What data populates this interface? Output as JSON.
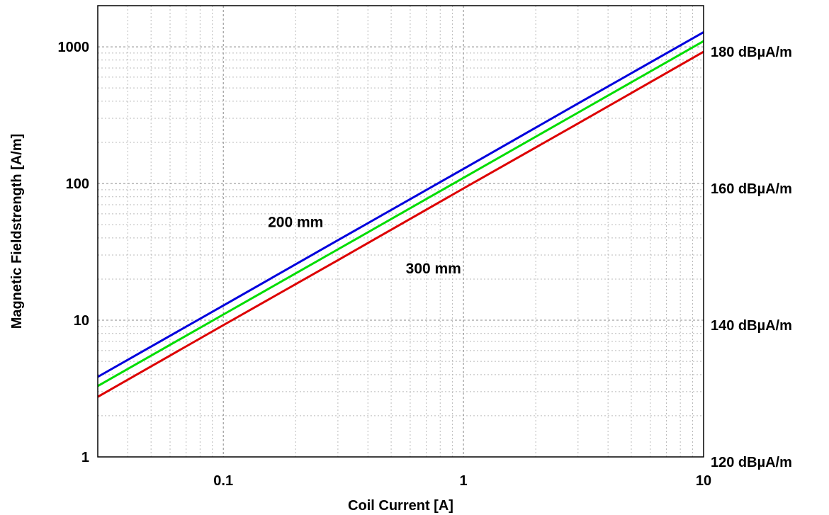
{
  "chart_data": {
    "type": "line",
    "title": "",
    "xlabel": "Coil Current [A]",
    "ylabel": "Magnetic Fieldstrength [A/m]",
    "xscale": "log",
    "yscale": "log",
    "xlim": [
      0.03,
      10
    ],
    "ylim": [
      1,
      2000
    ],
    "grid": true,
    "x_ticks": [
      {
        "value": 0.1,
        "label": "0.1"
      },
      {
        "value": 1,
        "label": "1"
      },
      {
        "value": 10,
        "label": "10"
      }
    ],
    "y_ticks": [
      {
        "value": 1,
        "label": "1"
      },
      {
        "value": 10,
        "label": "10"
      },
      {
        "value": 100,
        "label": "100"
      },
      {
        "value": 1000,
        "label": "1000"
      }
    ],
    "y2_ticks": [
      {
        "value": 1,
        "label": "120 dBµA/m"
      },
      {
        "value": 10,
        "label": "140 dBµA/m"
      },
      {
        "value": 100,
        "label": "160 dBµA/m"
      },
      {
        "value": 1000,
        "label": "180 dBµA/m"
      }
    ],
    "series": [
      {
        "color": "#0000dd",
        "x": [
          0.03,
          0.1,
          0.3,
          1,
          3,
          10
        ],
        "y": [
          3.85,
          12.8,
          38.5,
          128,
          385,
          1280
        ]
      },
      {
        "color": "#00dd00",
        "x": [
          0.03,
          0.1,
          0.3,
          1,
          3,
          10
        ],
        "y": [
          3.3,
          11,
          33,
          110,
          330,
          1100
        ]
      },
      {
        "color": "#dd0000",
        "x": [
          0.03,
          0.1,
          0.3,
          1,
          3,
          10
        ],
        "y": [
          2.75,
          9.2,
          27.5,
          92,
          275,
          920
        ]
      }
    ],
    "annotations": [
      {
        "text": "200 mm",
        "x": 0.2,
        "y": 48
      },
      {
        "text": "300 mm",
        "x": 0.75,
        "y": 22
      }
    ]
  }
}
